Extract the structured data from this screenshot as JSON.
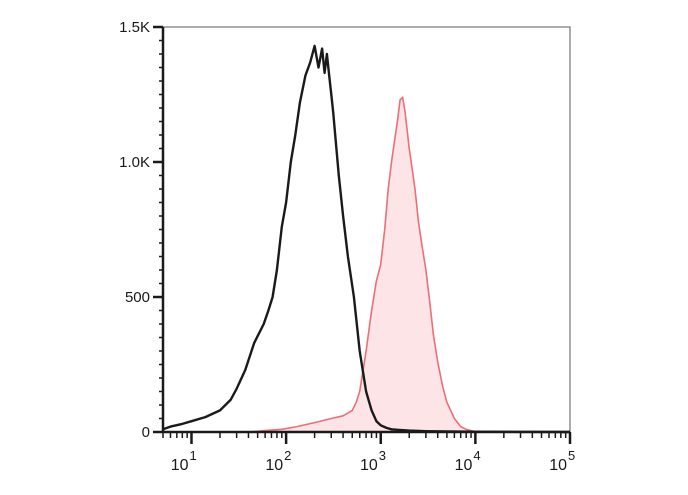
{
  "chart_data": {
    "type": "area",
    "title": "",
    "xlabel": "",
    "ylabel": "",
    "x_scale": "log",
    "xlim": [
      5,
      100000
    ],
    "ylim": [
      0,
      1500
    ],
    "grid": false,
    "legend": "none",
    "x_tick_labels": [
      {
        "base": "10",
        "exp": "1",
        "value": 10
      },
      {
        "base": "10",
        "exp": "2",
        "value": 100
      },
      {
        "base": "10",
        "exp": "3",
        "value": 1000
      },
      {
        "base": "10",
        "exp": "4",
        "value": 10000
      },
      {
        "base": "10",
        "exp": "5",
        "value": 100000
      }
    ],
    "y_ticks": [
      {
        "label": "0",
        "value": 0
      },
      {
        "label": "500",
        "value": 500
      },
      {
        "label": "1.0K",
        "value": 1000
      },
      {
        "label": "1.5K",
        "value": 1500
      }
    ],
    "series": [
      {
        "style": "line",
        "color": "#1a1a1a",
        "x": [
          5,
          6,
          8,
          10,
          14,
          20,
          26,
          30,
          37,
          46,
          58,
          65,
          72,
          80,
          90,
          100,
          112,
          125,
          140,
          160,
          180,
          200,
          220,
          240,
          255,
          270,
          285,
          300,
          315,
          330,
          360,
          400,
          450,
          520,
          600,
          700,
          800,
          900,
          1000,
          1150,
          1300,
          1500,
          2000,
          3000,
          5000,
          10000,
          100000
        ],
        "y": [
          10,
          20,
          30,
          40,
          55,
          80,
          120,
          160,
          230,
          330,
          400,
          450,
          500,
          600,
          760,
          850,
          1000,
          1100,
          1220,
          1320,
          1370,
          1430,
          1350,
          1420,
          1330,
          1400,
          1320,
          1250,
          1180,
          1100,
          950,
          800,
          650,
          500,
          300,
          150,
          80,
          40,
          25,
          15,
          10,
          8,
          5,
          3,
          2,
          1,
          0
        ]
      },
      {
        "style": "filled",
        "color": "#ec6f78",
        "fill": "#fde4e6",
        "x": [
          40,
          60,
          90,
          130,
          200,
          300,
          400,
          500,
          550,
          600,
          700,
          800,
          900,
          1000,
          1100,
          1200,
          1300,
          1400,
          1500,
          1600,
          1700,
          1800,
          1900,
          2000,
          2100,
          2200,
          2300,
          2500,
          2700,
          3000,
          3300,
          3600,
          4000,
          4500,
          5000,
          6000,
          7000,
          8000,
          9000,
          10000,
          20000,
          100000
        ],
        "y": [
          0,
          5,
          10,
          20,
          35,
          50,
          60,
          80,
          110,
          150,
          300,
          450,
          560,
          620,
          750,
          900,
          1000,
          1080,
          1150,
          1230,
          1240,
          1190,
          1120,
          1050,
          1000,
          950,
          900,
          780,
          700,
          600,
          480,
          360,
          260,
          170,
          110,
          50,
          20,
          10,
          5,
          2,
          1,
          0
        ]
      }
    ]
  }
}
